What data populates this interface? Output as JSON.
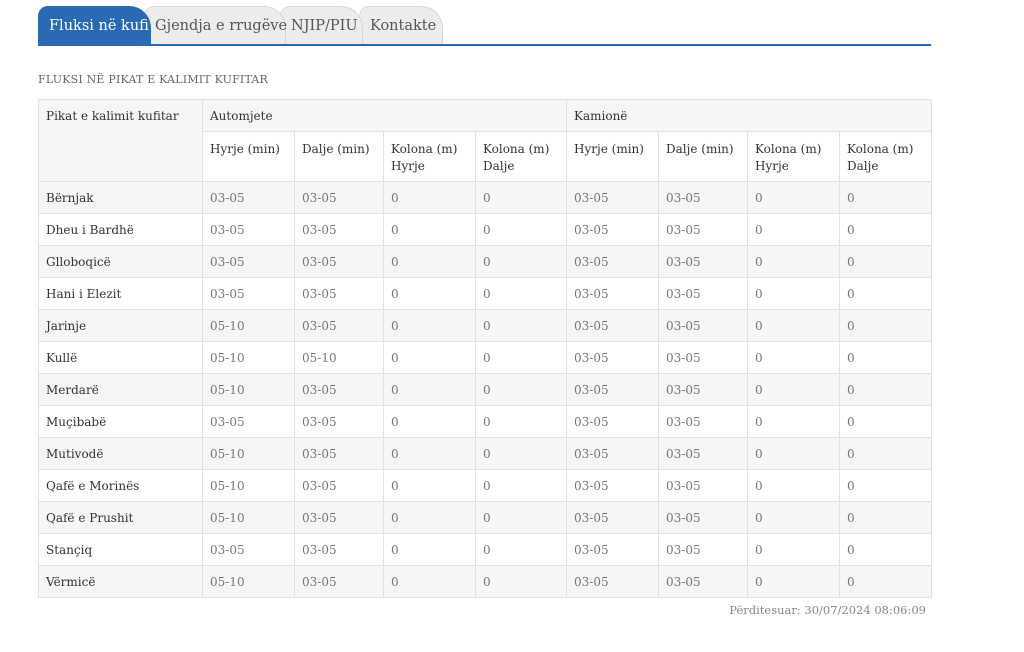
{
  "tabs": [
    {
      "label": "Fluksi në kufi",
      "active": true
    },
    {
      "label": "Gjendja e rrugëve",
      "active": false
    },
    {
      "label": "NJIP/PIU",
      "active": false
    },
    {
      "label": "Kontakte",
      "active": false
    }
  ],
  "section_title": "FLUKSI NË PIKAT E KALIMIT KUFITAR",
  "table": {
    "first_header": "Pikat e kalimit kufitar",
    "groups": [
      "Automjete",
      "Kamionë"
    ],
    "columns": [
      "Hyrje (min)",
      "Dalje (min)",
      "Kolona (m) Hyrje",
      "Kolona (m) Dalje",
      "Hyrje (min)",
      "Dalje (min)",
      "Kolona (m) Hyrje",
      "Kolona (m) Dalje"
    ],
    "rows": [
      {
        "name": "Bërnjak",
        "values": [
          "03-05",
          "03-05",
          "0",
          "0",
          "03-05",
          "03-05",
          "0",
          "0"
        ]
      },
      {
        "name": "Dheu i Bardhë",
        "values": [
          "03-05",
          "03-05",
          "0",
          "0",
          "03-05",
          "03-05",
          "0",
          "0"
        ]
      },
      {
        "name": "Glloboqicë",
        "values": [
          "03-05",
          "03-05",
          "0",
          "0",
          "03-05",
          "03-05",
          "0",
          "0"
        ]
      },
      {
        "name": "Hani i Elezit",
        "values": [
          "03-05",
          "03-05",
          "0",
          "0",
          "03-05",
          "03-05",
          "0",
          "0"
        ]
      },
      {
        "name": "Jarinje",
        "values": [
          "05-10",
          "03-05",
          "0",
          "0",
          "03-05",
          "03-05",
          "0",
          "0"
        ]
      },
      {
        "name": "Kullë",
        "values": [
          "05-10",
          "05-10",
          "0",
          "0",
          "03-05",
          "03-05",
          "0",
          "0"
        ]
      },
      {
        "name": "Merdarë",
        "values": [
          "05-10",
          "03-05",
          "0",
          "0",
          "03-05",
          "03-05",
          "0",
          "0"
        ]
      },
      {
        "name": "Muçibabë",
        "values": [
          "03-05",
          "03-05",
          "0",
          "0",
          "03-05",
          "03-05",
          "0",
          "0"
        ]
      },
      {
        "name": "Mutivodë",
        "values": [
          "05-10",
          "03-05",
          "0",
          "0",
          "03-05",
          "03-05",
          "0",
          "0"
        ]
      },
      {
        "name": "Qafë e Morinës",
        "values": [
          "05-10",
          "03-05",
          "0",
          "0",
          "03-05",
          "03-05",
          "0",
          "0"
        ]
      },
      {
        "name": "Qafë e Prushit",
        "values": [
          "05-10",
          "03-05",
          "0",
          "0",
          "03-05",
          "03-05",
          "0",
          "0"
        ]
      },
      {
        "name": "Stançiq",
        "values": [
          "03-05",
          "03-05",
          "0",
          "0",
          "03-05",
          "03-05",
          "0",
          "0"
        ]
      },
      {
        "name": "Vërmicë",
        "values": [
          "05-10",
          "03-05",
          "0",
          "0",
          "03-05",
          "03-05",
          "0",
          "0"
        ]
      }
    ]
  },
  "updated_text": "Përditesuar: 30/07/2024 08:06:09",
  "colors": {
    "accent": "#2a6ab4",
    "tab_inactive": "#ececec",
    "row_stripe": "#f6f6f6"
  }
}
